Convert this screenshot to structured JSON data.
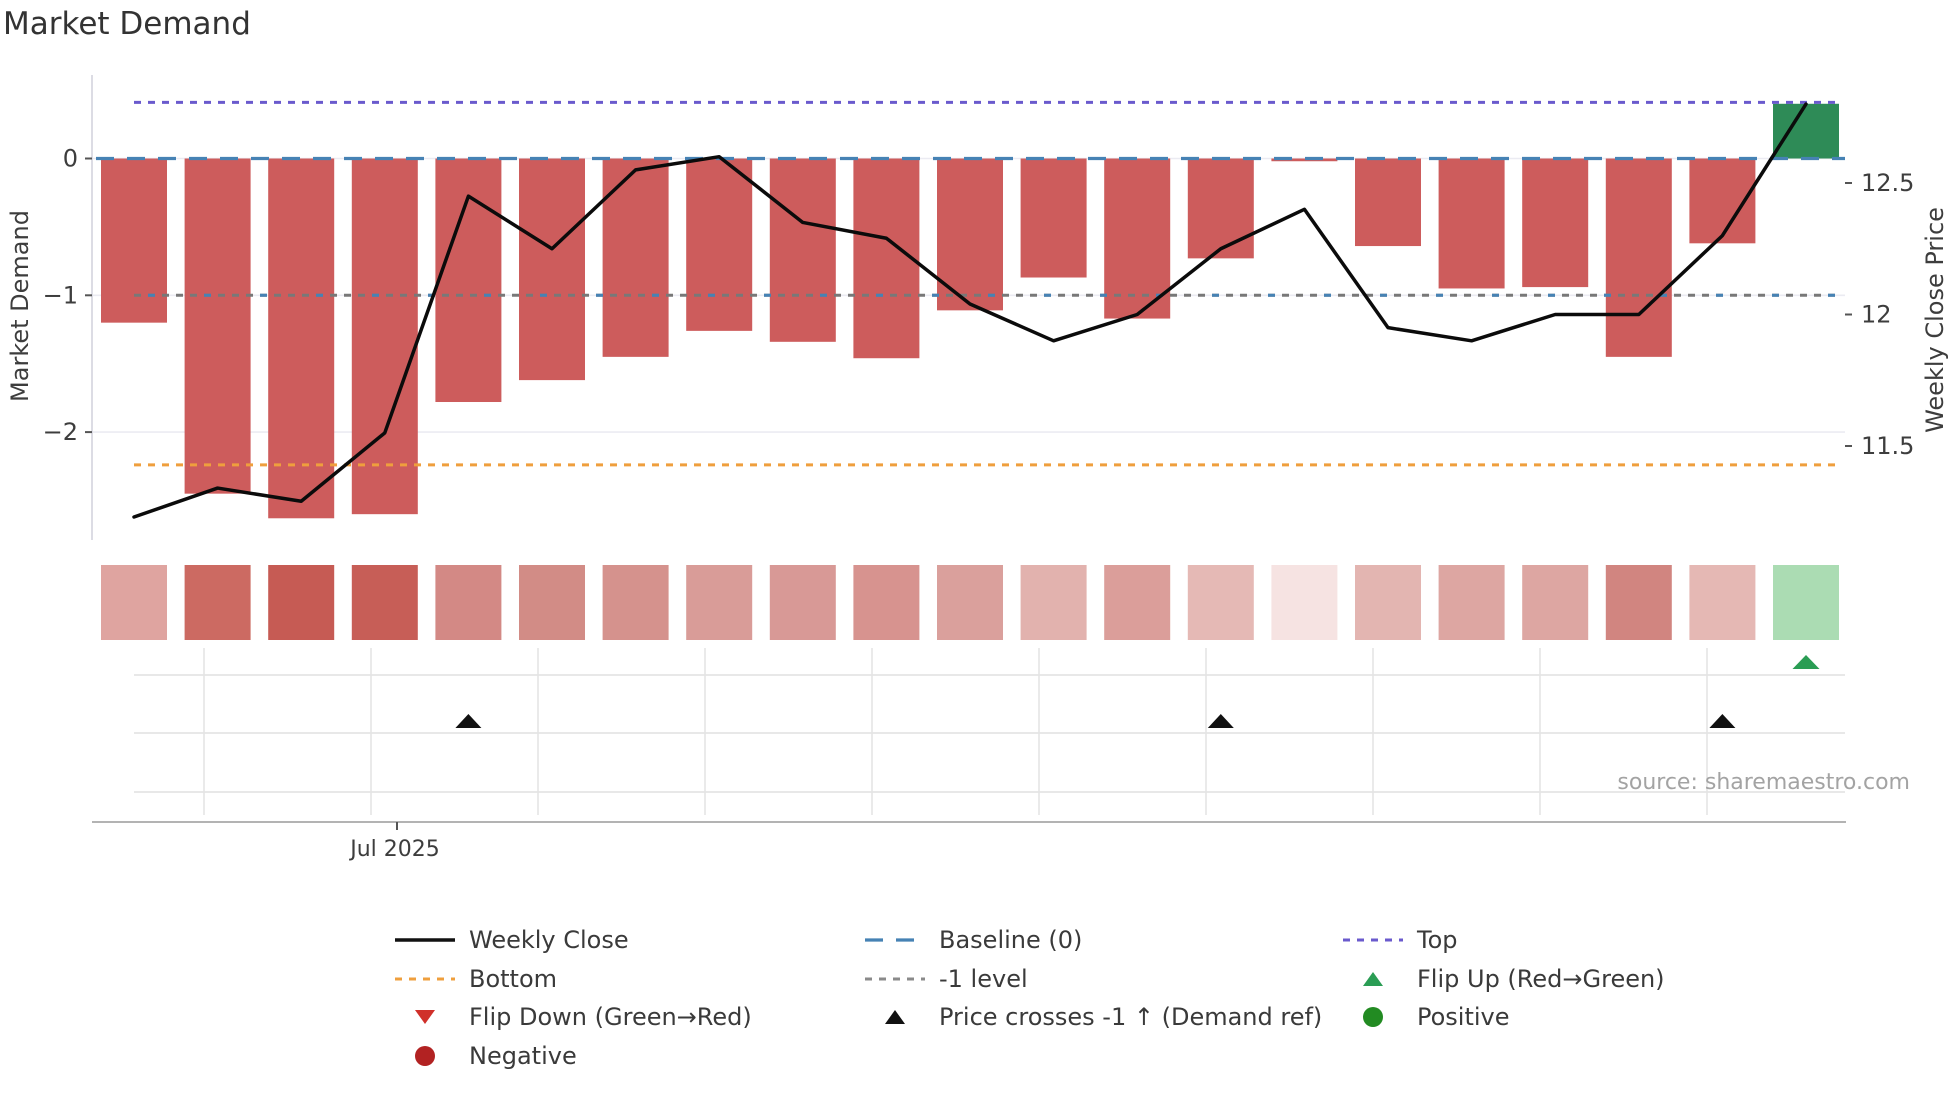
{
  "title": "Market Demand",
  "source_text": "source: sharemaestro.com",
  "axes": {
    "left_label": "Market Demand",
    "right_label": "Weekly Close Price",
    "left_ticks": [
      {
        "label": "0",
        "value": 0
      },
      {
        "label": "−1",
        "value": -1
      },
      {
        "label": "−2",
        "value": -2
      }
    ],
    "right_ticks": [
      {
        "label": "12.5",
        "value": 12.5
      },
      {
        "label": "12",
        "value": 12
      },
      {
        "label": "11.5",
        "value": 11.5
      }
    ],
    "x_tick": {
      "label": "Jul 2025"
    }
  },
  "colors": {
    "bar_negative": "#cd5c5c",
    "bar_positive": "#2e8b57",
    "price_line": "#0b0b0b",
    "baseline": "#4682b4",
    "top_line": "#6a5acd",
    "minus1_line": "#787878",
    "bottom_line": "#ef9f3d",
    "grid": "#ebebf2",
    "marker_grid": "#e4e4e4",
    "spine": "#b3b3b3",
    "flip_up_marker": "#2a9d54",
    "price_cross_marker": "#111111"
  },
  "chart_data": {
    "type": "bar",
    "x": [
      1,
      2,
      3,
      4,
      5,
      6,
      7,
      8,
      9,
      10,
      11,
      12,
      13,
      14,
      15,
      16,
      17,
      18,
      19,
      20,
      21
    ],
    "x_unit": "week",
    "x_tick_label": "Jul 2025",
    "series": [
      {
        "name": "Market Demand",
        "type": "bar",
        "axis": "left",
        "values": [
          -1.2,
          -2.45,
          -2.63,
          -2.6,
          -1.78,
          -1.62,
          -1.45,
          -1.26,
          -1.34,
          -1.46,
          -1.11,
          -0.87,
          -1.17,
          -0.73,
          -0.02,
          -0.64,
          -0.95,
          -0.94,
          -1.45,
          -0.62,
          0.4
        ]
      },
      {
        "name": "Weekly Close",
        "type": "line",
        "axis": "right",
        "values": [
          11.23,
          11.34,
          11.29,
          11.55,
          12.45,
          12.25,
          12.55,
          12.6,
          12.35,
          12.29,
          12.04,
          11.9,
          12.0,
          12.25,
          12.4,
          11.95,
          11.9,
          12.0,
          12.0,
          12.3,
          12.8
        ]
      }
    ],
    "reference_lines": [
      {
        "name": "Baseline (0)",
        "value": 0,
        "style": "dashed",
        "color": "#4682b4"
      },
      {
        "name": "Top",
        "value": 0.41,
        "style": "dotted",
        "color": "#6a5acd"
      },
      {
        "name": "-1 level",
        "value": -1,
        "style": "dotted",
        "color": "#787878"
      },
      {
        "name": "Bottom",
        "value": -2.24,
        "style": "dotted",
        "color": "#ef9f3d"
      }
    ],
    "heat_strip": {
      "colors": [
        "#dfa4a0",
        "#cc6a62",
        "#c65b54",
        "#c75e57",
        "#d38985",
        "#d28c86",
        "#d5928d",
        "#d99c98",
        "#d89996",
        "#d7938f",
        "#daa09c",
        "#e2b2ae",
        "#db9e9a",
        "#e5b9b5",
        "#f6e3e2",
        "#e3b5b1",
        "#dda6a2",
        "#dda6a2",
        "#d18580",
        "#e5b8b4",
        "#abdcb3"
      ]
    },
    "markers": {
      "price_cross_up_weeks": [
        5,
        14,
        20
      ],
      "flip_up_weeks": [
        21
      ],
      "flip_down_weeks": []
    },
    "ylabel": "Market Demand",
    "ylabel_right": "Weekly Close Price",
    "ylim_left": [
      -2.79,
      0.52
    ],
    "ylim_right": [
      11.14,
      12.86
    ],
    "grid": "faint horizontal at 0,-1,-2; faint verticals in marker rows",
    "legend_position": "bottom"
  },
  "legend": {
    "columns": [
      {
        "items": [
          {
            "swatch": "line",
            "color": "#111111",
            "label": "Weekly Close"
          },
          {
            "swatch": "dotted-line",
            "color": "#ef9f3d",
            "label": "Bottom"
          },
          {
            "swatch": "triangle-down",
            "color": "#d0302a",
            "label": "Flip Down (Green→Red)"
          },
          {
            "swatch": "circle",
            "color": "#b22222",
            "label": "Negative"
          }
        ]
      },
      {
        "items": [
          {
            "swatch": "dashed-line",
            "color": "#4682b4",
            "label": "Baseline (0)"
          },
          {
            "swatch": "dotted-line",
            "color": "#8a8a8a",
            "label": "-1 level"
          },
          {
            "swatch": "triangle-up",
            "color": "#111111",
            "label": "Price crosses -1 ↑ (Demand ref)"
          }
        ]
      },
      {
        "items": [
          {
            "swatch": "dotted-line",
            "color": "#6a5acd",
            "label": "Top"
          },
          {
            "swatch": "triangle-up",
            "color": "#2a9d54",
            "label": "Flip Up (Red→Green)"
          },
          {
            "swatch": "circle",
            "color": "#228b22",
            "label": "Positive"
          }
        ]
      }
    ]
  }
}
